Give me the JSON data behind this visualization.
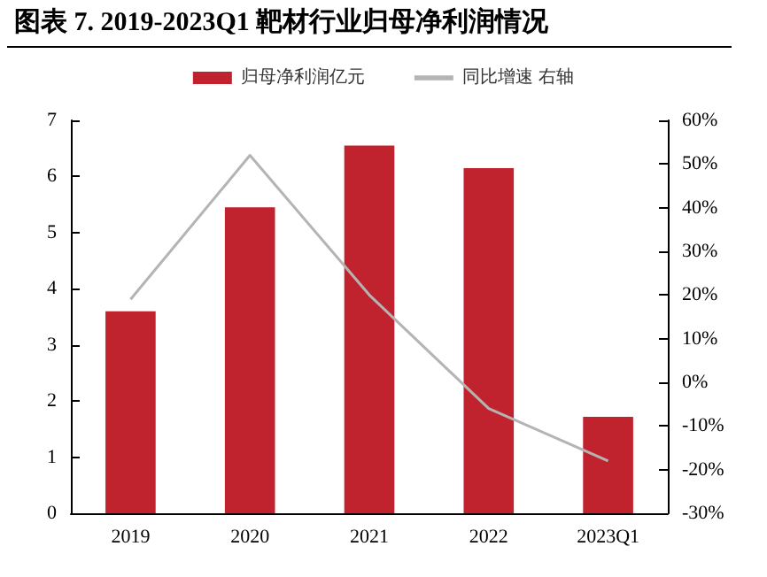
{
  "chart_data": {
    "type": "bar",
    "title": "图表 7.   2019-2023Q1 靶材行业归母净利润情况",
    "categories": [
      "2019",
      "2020",
      "2021",
      "2022",
      "2023Q1"
    ],
    "series": [
      {
        "name": "归母净利润亿元",
        "color": "#c0232e",
        "values": [
          3.6,
          5.45,
          6.55,
          6.15,
          1.72
        ]
      },
      {
        "name": "同比增速 右轴",
        "type": "line",
        "axis": "y2",
        "color": "#b4b4b4",
        "values": [
          19,
          52,
          20,
          -6,
          -18
        ]
      }
    ],
    "ylim": [
      0,
      7
    ],
    "yticks": [
      0,
      1,
      2,
      3,
      4,
      5,
      6,
      7
    ],
    "y2lim": [
      -30,
      60
    ],
    "y2ticks": [
      {
        "value": -30,
        "label": "-30%"
      },
      {
        "value": -20,
        "label": "-20%"
      },
      {
        "value": -10,
        "label": "-10%"
      },
      {
        "value": 0,
        "label": "0%"
      },
      {
        "value": 10,
        "label": "10%"
      },
      {
        "value": 20,
        "label": "20%"
      },
      {
        "value": 30,
        "label": "30%"
      },
      {
        "value": 40,
        "label": "40%"
      },
      {
        "value": 50,
        "label": "50%"
      },
      {
        "value": 60,
        "label": "60%"
      }
    ],
    "grid": false,
    "legend": "top",
    "marker": "none"
  }
}
